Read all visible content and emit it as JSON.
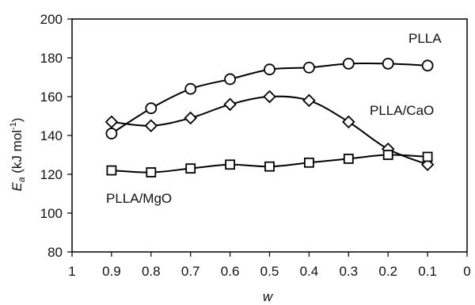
{
  "chart_data": {
    "type": "line",
    "xlabel": "w",
    "ylabel": {
      "main": "E",
      "sub": "a",
      "unit_prefix": " (kJ mol",
      "unit_sup": "-1",
      "unit_suffix": ")"
    },
    "xlim": [
      1,
      0
    ],
    "ylim": [
      80,
      200
    ],
    "x_ticks": [
      1,
      0.9,
      0.8,
      0.7,
      0.6,
      0.5,
      0.4,
      0.3,
      0.2,
      0.1,
      0
    ],
    "x_tick_labels": [
      "1",
      "0.9",
      "0.8",
      "0.7",
      "0.6",
      "0.5",
      "0.4",
      "0.3",
      "0.2",
      "0.1",
      "0"
    ],
    "y_ticks": [
      80,
      100,
      120,
      140,
      160,
      180,
      200
    ],
    "y_tick_labels": [
      "80",
      "100",
      "120",
      "140",
      "160",
      "180",
      "200"
    ],
    "grid": false,
    "legend": "none",
    "series": [
      {
        "name": "PLLA",
        "marker": "circle",
        "x": [
          0.9,
          0.8,
          0.7,
          0.6,
          0.5,
          0.4,
          0.3,
          0.2,
          0.1
        ],
        "values": [
          141,
          154,
          164,
          169,
          174,
          175,
          177,
          177,
          176
        ]
      },
      {
        "name": "PLLA/CaO",
        "marker": "diamond",
        "x": [
          0.9,
          0.8,
          0.7,
          0.6,
          0.5,
          0.4,
          0.3,
          0.2,
          0.1
        ],
        "values": [
          147,
          145,
          149,
          156,
          160,
          158,
          147,
          133,
          125
        ]
      },
      {
        "name": "PLLA/MgO",
        "marker": "square",
        "x": [
          0.9,
          0.8,
          0.7,
          0.6,
          0.5,
          0.4,
          0.3,
          0.2,
          0.1
        ],
        "values": [
          122,
          121,
          123,
          125,
          124,
          126,
          128,
          130,
          129
        ]
      }
    ]
  }
}
